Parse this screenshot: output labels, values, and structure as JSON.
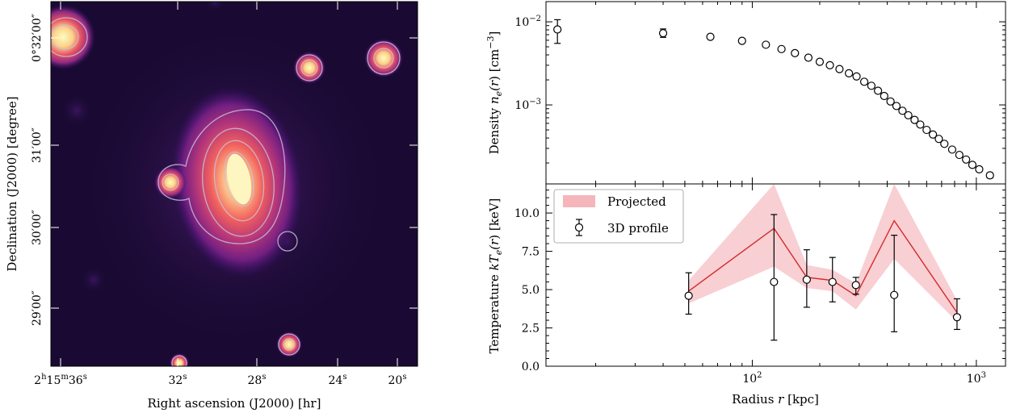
{
  "colors": {
    "band": "#f4b6bb",
    "line": "#d42a2a",
    "marker_edge": "#000000",
    "map_background": "#1a0a33",
    "contour": "#c8c0d8"
  },
  "chart_data": [
    {
      "type": "heatmap",
      "panel": "left",
      "title": "",
      "xlabel": "Right ascension (J2000) [hr]",
      "ylabel": "Declination (J2000) [degree]",
      "colormap": "magma",
      "x_tick_labels": [
        {
          "parts": [
            [
              "2",
              false
            ],
            [
              "h",
              true
            ],
            [
              "15",
              false
            ],
            [
              "m",
              true
            ],
            [
              "36",
              false
            ],
            [
              "s",
              true
            ]
          ]
        },
        {
          "parts": [
            [
              "32",
              false
            ],
            [
              "s",
              true
            ]
          ]
        },
        {
          "parts": [
            [
              "28",
              false
            ],
            [
              "s",
              true
            ]
          ]
        },
        {
          "parts": [
            [
              "24",
              false
            ],
            [
              "s",
              true
            ]
          ]
        },
        {
          "parts": [
            [
              "20",
              false
            ],
            [
              "s",
              true
            ]
          ]
        }
      ],
      "y_tick_labels": [
        "0°32′00″",
        "31′00″",
        "30′00″",
        "29′00″"
      ],
      "contours": true
    },
    {
      "type": "scatter",
      "panel": "top-right",
      "title": "",
      "xscale": "log",
      "yscale": "log",
      "xlim": [
        12,
        1350
      ],
      "ylim": [
        0.000112,
        0.0175
      ],
      "ylabel": "Density n_e(r) [cm^-3]",
      "ylabel_parts": [
        [
          "Density ",
          "n"
        ],
        [
          "n",
          "i"
        ],
        [
          "e",
          "sub-i"
        ],
        [
          "(",
          "i"
        ],
        [
          "r",
          "i"
        ],
        [
          ") [cm",
          "n"
        ],
        [
          "−3",
          "sup"
        ],
        [
          "]",
          "n"
        ]
      ],
      "y_tick_labels": [
        {
          "value": 0.01,
          "mant": "10",
          "exp": "−2"
        },
        {
          "value": 0.001,
          "mant": "10",
          "exp": "−3"
        }
      ],
      "series": [
        {
          "name": "Density",
          "marker": "open-circle",
          "x": [
            13.5,
            40,
            65,
            90,
            115,
            135,
            155,
            178,
            200,
            222,
            245,
            270,
            292,
            316,
            340,
            364,
            388,
            414,
            440,
            468,
            497,
            530,
            562,
            600,
            640,
            680,
            720,
            780,
            840,
            900,
            960,
            1030,
            1150
          ],
          "y": [
            0.0081,
            0.0073,
            0.0066,
            0.0059,
            0.0053,
            0.0047,
            0.0042,
            0.0037,
            0.0033,
            0.003,
            0.0027,
            0.0024,
            0.0022,
            0.0019,
            0.0017,
            0.00148,
            0.00128,
            0.0011,
            0.00097,
            0.00085,
            0.00075,
            0.00066,
            0.00058,
            0.0005,
            0.00044,
            0.00039,
            0.00034,
            0.00029,
            0.00025,
            0.00022,
            0.00019,
            0.000168,
            0.000142
          ],
          "yerr_low": [
            0.0026,
            0.0008,
            0,
            0,
            0,
            0,
            0,
            0,
            0,
            0,
            0,
            0,
            0,
            0,
            0,
            0,
            0,
            0,
            0,
            0,
            0,
            0,
            0,
            0,
            0,
            0,
            0,
            0,
            0,
            0,
            0,
            1e-05,
            1e-05
          ],
          "yerr_high": [
            0.0025,
            0.0009,
            0,
            0,
            0,
            0,
            0,
            0,
            0,
            0,
            0,
            0,
            0,
            0,
            0,
            0,
            0,
            0,
            0,
            0,
            0,
            0,
            0,
            0,
            0,
            0,
            0,
            0,
            0,
            0,
            0,
            1e-05,
            1e-05
          ]
        }
      ]
    },
    {
      "type": "line",
      "panel": "bottom-right",
      "title": "",
      "xscale": "log",
      "xlim": [
        12,
        1350
      ],
      "ylim": [
        0,
        11.9
      ],
      "xlabel": "Radius r [kpc]",
      "xlabel_parts": [
        [
          "Radius ",
          "n"
        ],
        [
          "r",
          "i"
        ],
        [
          " [kpc]",
          "n"
        ]
      ],
      "ylabel": "Temperature kT_e(r) [keV]",
      "ylabel_parts": [
        [
          "Temperature ",
          "n"
        ],
        [
          "kT",
          "i"
        ],
        [
          "e",
          "sub-i"
        ],
        [
          "(",
          "i"
        ],
        [
          "r",
          "i"
        ],
        [
          ") [keV]",
          "n"
        ]
      ],
      "y_ticks": [
        0.0,
        2.5,
        5.0,
        7.5,
        10.0
      ],
      "y_tick_labels": [
        "0.0",
        "2.5",
        "5.0",
        "7.5",
        "10.0"
      ],
      "x_tick_labels": [
        {
          "value": 100,
          "mant": "10",
          "exp": "2"
        },
        {
          "value": 1000,
          "mant": "10",
          "exp": "3"
        }
      ],
      "legend_position": "top-left",
      "series": [
        {
          "name": "Projected",
          "kind": "band",
          "x": [
            52,
            125,
            175,
            228,
            290,
            430,
            820
          ],
          "y": [
            4.9,
            9.0,
            5.8,
            5.6,
            4.6,
            9.5,
            3.5
          ],
          "y_low": [
            4.1,
            6.5,
            5.1,
            4.9,
            3.7,
            7.0,
            2.9
          ],
          "y_high": [
            5.6,
            12.0,
            6.6,
            6.3,
            5.4,
            12.0,
            4.3
          ]
        },
        {
          "name": "3D profile",
          "kind": "errorbar",
          "x": [
            52,
            125,
            175,
            228,
            290,
            430,
            820
          ],
          "y": [
            4.6,
            5.5,
            5.65,
            5.5,
            5.3,
            4.65,
            3.2
          ],
          "yerr_low": [
            1.2,
            3.8,
            1.8,
            1.3,
            0.6,
            2.4,
            0.8
          ],
          "yerr_high": [
            1.5,
            4.4,
            1.95,
            1.6,
            0.5,
            3.9,
            1.2
          ]
        }
      ]
    }
  ]
}
